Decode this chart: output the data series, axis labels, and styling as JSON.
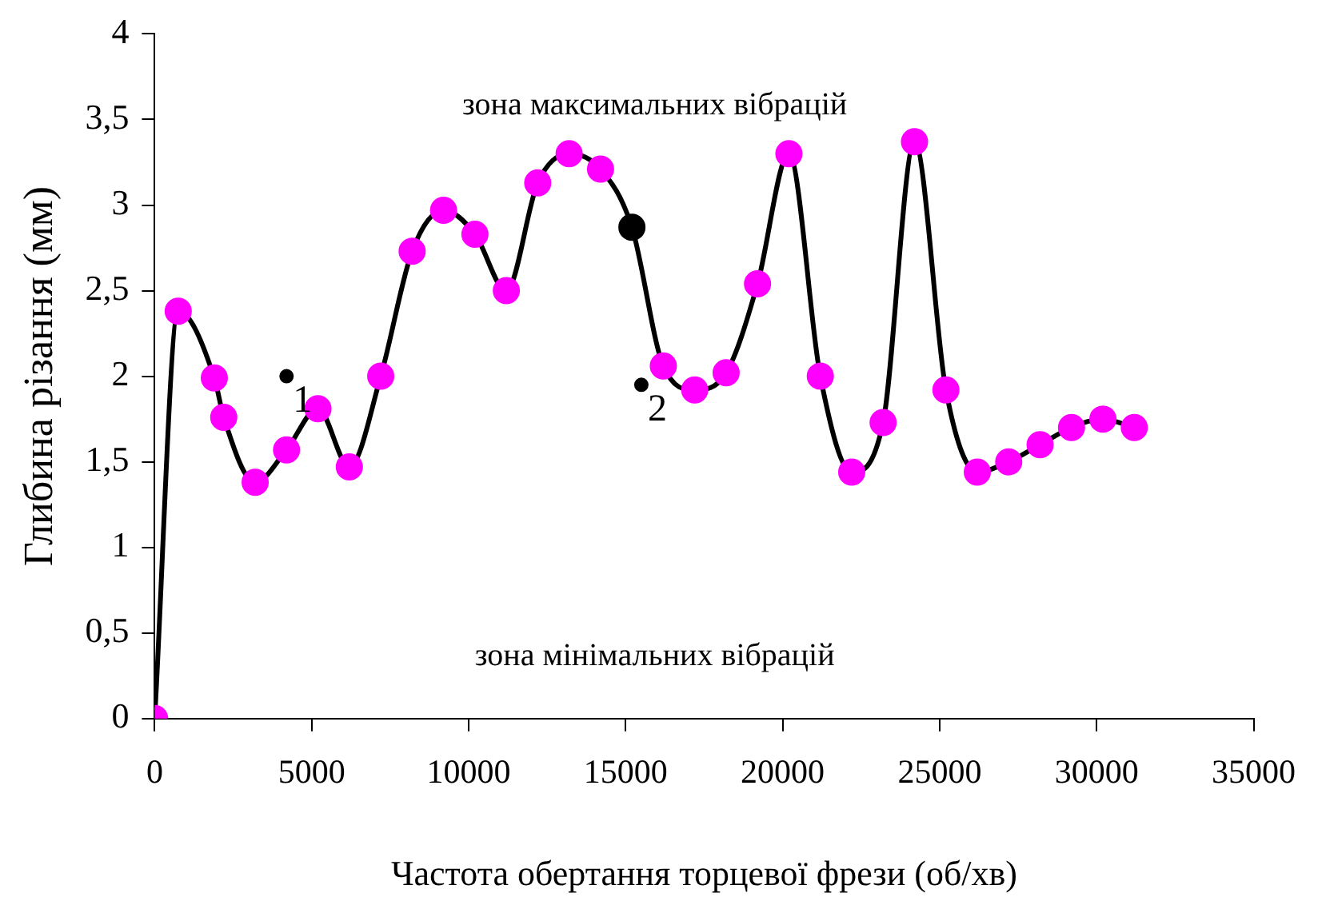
{
  "chart_data": {
    "type": "line",
    "xlabel": "Частота обертання торцевої фрези (об/хв)",
    "ylabel": "Глибина різання (мм)",
    "xlim": [
      0,
      35000
    ],
    "xticks": [
      0,
      5000,
      10000,
      15000,
      20000,
      25000,
      30000,
      35000
    ],
    "ylim": [
      0,
      4
    ],
    "yticks": [
      0,
      {
        "value": 0.5,
        "label": "0,5"
      },
      1,
      {
        "value": 1.5,
        "label": "1,5"
      },
      2,
      {
        "value": 2.5,
        "label": "2,5"
      },
      3,
      {
        "value": 3.5,
        "label": "3,5"
      },
      4
    ],
    "grid": false,
    "legend": false,
    "marker": "circle",
    "line_style": "solid",
    "series": [
      {
        "color": "#000000",
        "x": [
          0,
          750,
          1900,
          2200,
          3200,
          4200,
          5200,
          6200,
          7200,
          8200,
          9200,
          10200,
          11200,
          12200,
          13200,
          14200,
          15200,
          16200,
          17200,
          18200,
          19200,
          20200,
          21200,
          22200,
          23200,
          24200,
          25200,
          26200,
          27200,
          28200,
          29200,
          30200,
          31200
        ],
        "values": [
          0,
          2.38,
          1.99,
          1.76,
          1.38,
          1.57,
          1.81,
          1.47,
          2.0,
          2.73,
          2.97,
          2.83,
          2.5,
          3.13,
          3.3,
          3.21,
          2.87,
          2.06,
          1.92,
          2.02,
          2.54,
          3.3,
          2.0,
          1.44,
          1.73,
          3.37,
          1.92,
          1.44,
          1.5,
          1.6,
          1.7,
          1.75,
          1.7
        ],
        "colors": [
          "#ff00ff",
          "#ff00ff",
          "#ff00ff",
          "#ff00ff",
          "#ff00ff",
          "#ff00ff",
          "#ff00ff",
          "#ff00ff",
          "#ff00ff",
          "#ff00ff",
          "#ff00ff",
          "#ff00ff",
          "#ff00ff",
          "#ff00ff",
          "#ff00ff",
          "#ff00ff",
          "#000000",
          "#ff00ff",
          "#ff00ff",
          "#ff00ff",
          "#ff00ff",
          "#ff00ff",
          "#ff00ff",
          "#ff00ff",
          "#ff00ff",
          "#ff00ff",
          "#ff00ff",
          "#ff00ff",
          "#ff00ff",
          "#ff00ff",
          "#ff00ff",
          "#ff00ff",
          "#ff00ff"
        ]
      },
      {
        "type": "scatter",
        "color": "#000000",
        "x": [
          4200,
          15500
        ],
        "values": [
          2.0,
          1.95
        ]
      }
    ],
    "annotations": [
      "зона максимальних вібрацій",
      "зона мінімальних вібрацій",
      {
        "text": "1",
        "x": 4200,
        "y": 2.0
      },
      {
        "text": "2",
        "x": 15500,
        "y": 1.95
      }
    ]
  }
}
